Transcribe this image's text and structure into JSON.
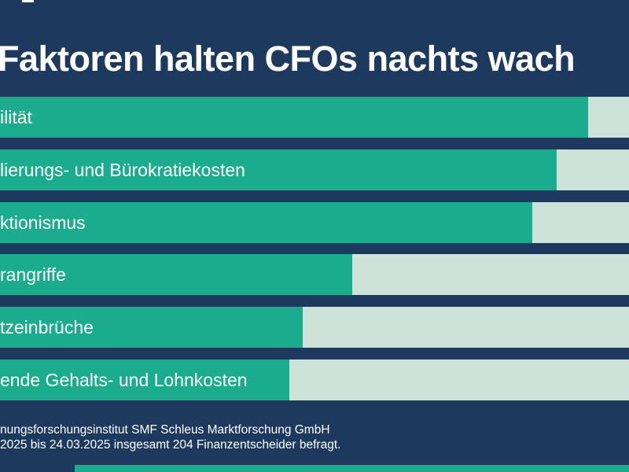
{
  "title": "Faktoren halten CFOs nachts wach",
  "colors": {
    "background": "#1d3a5e",
    "bar_fill": "#1aac8c",
    "bar_track": "#cde2d8",
    "text": "#ffffff"
  },
  "chart_data": {
    "type": "bar",
    "orientation": "horizontal",
    "title": "Faktoren halten CFOs nachts wach",
    "categories": [
      "ilität",
      "lierungs- und Bürokratiekosten",
      "ktionismus",
      "rangriffe",
      "tzeinbrüche",
      "ende Gehalts- und Lohnkosten"
    ],
    "values": [
      93.5,
      88.5,
      84.6,
      56.0,
      48.1,
      46.0
    ],
    "value_unit": "percent_of_visible_chart_width_estimate",
    "xlabel": "",
    "ylabel": "",
    "grid": false,
    "legend": false,
    "data_labels_shown": false
  },
  "footer": {
    "line1": "nungsforschungsinstitut SMF Schleus Marktforschung GmbH",
    "line2": "2025 bis 24.03.2025 insgesamt 204 Finanzentscheider befragt."
  }
}
